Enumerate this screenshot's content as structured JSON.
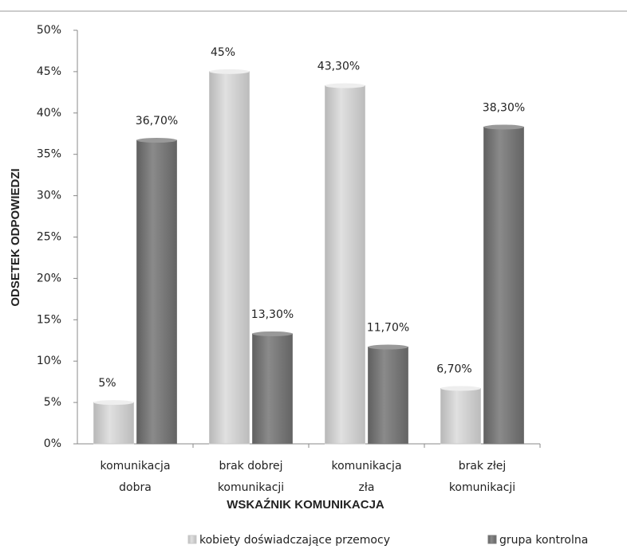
{
  "chart_data": {
    "type": "bar",
    "y_label": "ODSETEK ODPOWIEDZI",
    "x_label": "WSKAŹNIK KOMUNIKACJA",
    "categories": [
      [
        "komunikacja",
        "dobra"
      ],
      [
        "brak dobrej",
        "komunikacji"
      ],
      [
        "komunikacja",
        "zła"
      ],
      [
        "brak złej",
        "komunikacji"
      ]
    ],
    "series": [
      {
        "name": "kobiety doświadczające przemocy",
        "color": "#c9c9c9",
        "values": [
          5,
          45,
          43.3,
          6.7
        ],
        "value_labels": [
          "5%",
          "45%",
          "43,30%",
          "6,70%"
        ]
      },
      {
        "name": "grupa kontrolna",
        "color": "#7a7a7a",
        "values": [
          36.7,
          13.3,
          11.7,
          38.3
        ],
        "value_labels": [
          "36,70%",
          "13,30%",
          "11,70%",
          "38,30%"
        ]
      }
    ],
    "ylim": [
      0,
      50
    ],
    "yticks": [
      {
        "value": 0,
        "label": "0%"
      },
      {
        "value": 5,
        "label": "5%"
      },
      {
        "value": 10,
        "label": "10%"
      },
      {
        "value": 15,
        "label": "15%"
      },
      {
        "value": 20,
        "label": "20%"
      },
      {
        "value": 25,
        "label": "25%"
      },
      {
        "value": 30,
        "label": "30%"
      },
      {
        "value": 35,
        "label": "35%"
      },
      {
        "value": 40,
        "label": "40%"
      },
      {
        "value": 45,
        "label": "45%"
      },
      {
        "value": 50,
        "label": "50%"
      }
    ],
    "legend": "bottom"
  }
}
